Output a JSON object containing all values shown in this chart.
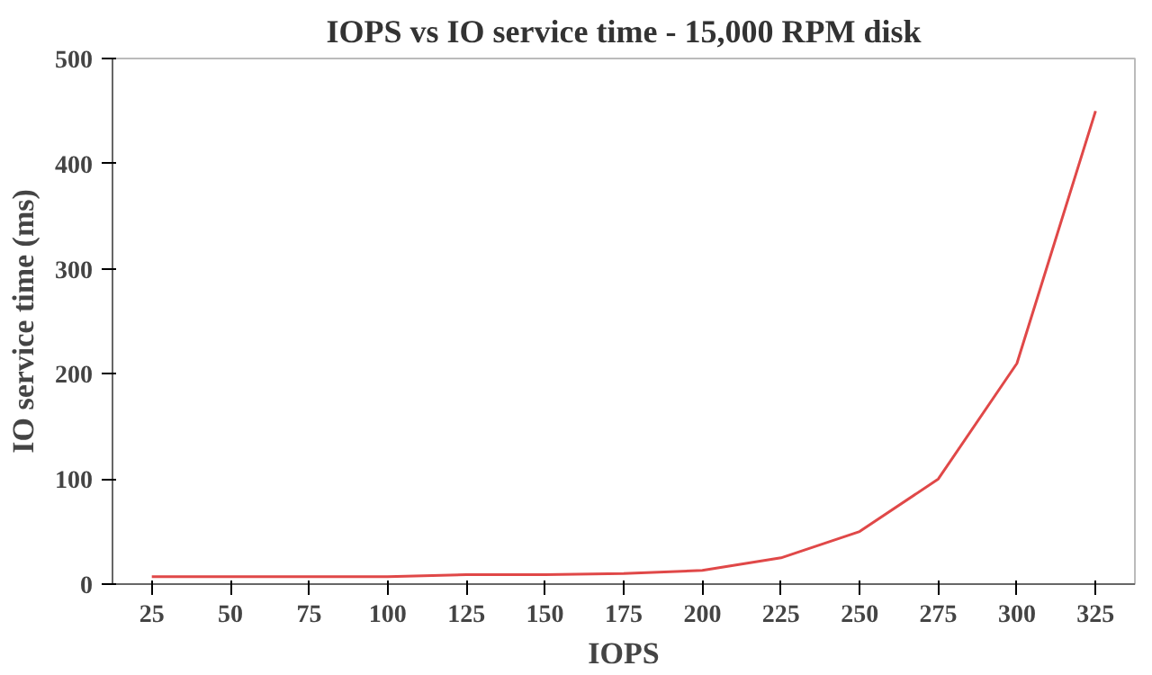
{
  "chart_data": {
    "type": "line",
    "title": "IOPS vs IO service time - 15,000 RPM disk",
    "xlabel": "IOPS",
    "ylabel": "IO service time (ms)",
    "categories": [
      "25",
      "50",
      "75",
      "100",
      "125",
      "150",
      "175",
      "200",
      "225",
      "250",
      "275",
      "300",
      "325"
    ],
    "series": [
      {
        "color": "#e04848",
        "values": [
          7,
          7,
          7,
          7,
          9,
          9,
          10,
          13,
          25,
          50,
          100,
          210,
          450
        ]
      }
    ],
    "ylim": [
      0,
      500
    ],
    "yticks": [
      0,
      100,
      200,
      300,
      400,
      500
    ],
    "line_style": "solid"
  }
}
